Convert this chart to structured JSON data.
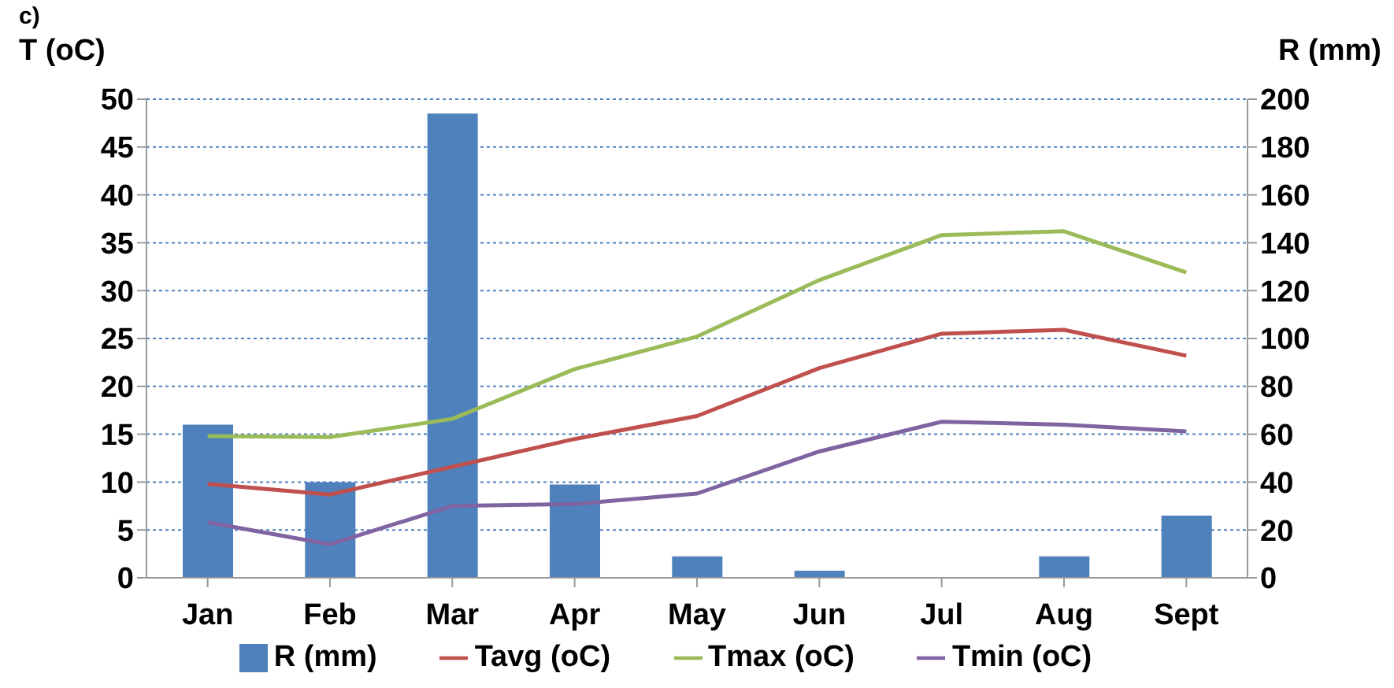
{
  "chart_data": {
    "type": "line",
    "ylabel": "T (oC)",
    "y2label": "R (mm)",
    "annotations": [
      "c)"
    ],
    "categories": [
      "Jan",
      "Feb",
      "Mar",
      "Apr",
      "May",
      "Jun",
      "Jul",
      "Aug",
      "Sept"
    ],
    "series": [
      {
        "name": "R (mm)",
        "type": "bar",
        "axis": "y2",
        "color": "#4f81bd",
        "values": [
          64,
          40,
          194,
          39,
          9,
          3,
          0,
          9,
          26
        ]
      },
      {
        "name": "Tavg (oC)",
        "color": "#c0504d",
        "values": [
          9.8,
          8.7,
          11.6,
          14.5,
          16.9,
          21.9,
          25.5,
          25.9,
          23.2
        ]
      },
      {
        "name": "Tmax (oC)",
        "color": "#9bbb59",
        "values": [
          14.8,
          14.7,
          16.6,
          21.8,
          25.2,
          31.1,
          35.8,
          36.2,
          31.9
        ]
      },
      {
        "name": "Tmin (oC)",
        "color": "#8064a2",
        "values": [
          5.8,
          3.5,
          7.5,
          7.7,
          8.8,
          13.2,
          16.3,
          16.0,
          15.3
        ]
      }
    ],
    "ylim": [
      0,
      50
    ],
    "yticks": [
      0,
      5,
      10,
      15,
      20,
      25,
      30,
      35,
      40,
      45,
      50
    ],
    "y2lim": [
      0,
      200
    ],
    "y2ticks": [
      0,
      20,
      40,
      60,
      80,
      100,
      120,
      140,
      160,
      180,
      200
    ],
    "grid": "y",
    "legend": "bottom",
    "marker": "none",
    "line_style": "solid"
  }
}
